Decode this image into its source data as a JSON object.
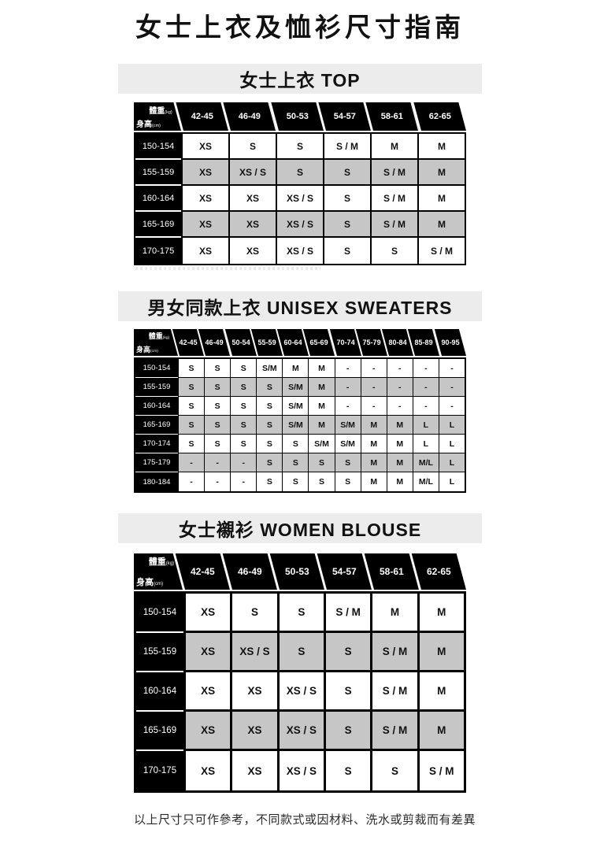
{
  "page": {
    "title": "女士上衣及恤衫尺寸指南",
    "footer": "以上尺寸只可作參考，不同款式或因材料、洗水或剪裁而有差異"
  },
  "corner": {
    "weight_label": "體重",
    "weight_unit": "(kg)",
    "height_label": "身高",
    "height_unit": "(cm)"
  },
  "colors": {
    "header_black": "#000000",
    "alt_row_gray": "#c6c6c6",
    "section_bar_bg": "#ececec"
  },
  "tables": [
    {
      "id": "women-top",
      "section_title": "女士上衣 TOP",
      "columns": [
        "42-45",
        "46-49",
        "50-53",
        "54-57",
        "58-61",
        "62-65"
      ],
      "rows": [
        {
          "label": "150-154",
          "cells": [
            "XS",
            "S",
            "S",
            "S / M",
            "M",
            "M"
          ]
        },
        {
          "label": "155-159",
          "cells": [
            "XS",
            "XS / S",
            "S",
            "S",
            "S / M",
            "M"
          ]
        },
        {
          "label": "160-164",
          "cells": [
            "XS",
            "XS",
            "XS / S",
            "S",
            "S / M",
            "M"
          ]
        },
        {
          "label": "165-169",
          "cells": [
            "XS",
            "XS",
            "XS / S",
            "S",
            "S / M",
            "M"
          ]
        },
        {
          "label": "170-175",
          "cells": [
            "XS",
            "XS",
            "XS / S",
            "S",
            "S",
            "S / M"
          ]
        }
      ]
    },
    {
      "id": "unisex-sweaters",
      "section_title": "男女同款上衣 UNISEX SWEATERS",
      "columns": [
        "42-45",
        "46-49",
        "50-54",
        "55-59",
        "60-64",
        "65-69",
        "70-74",
        "75-79",
        "80-84",
        "85-89",
        "90-95"
      ],
      "rows": [
        {
          "label": "150-154",
          "cells": [
            "S",
            "S",
            "S",
            "S/M",
            "M",
            "M",
            "-",
            "-",
            "-",
            "-",
            "-"
          ]
        },
        {
          "label": "155-159",
          "cells": [
            "S",
            "S",
            "S",
            "S",
            "S/M",
            "M",
            "-",
            "-",
            "-",
            "-",
            "-"
          ]
        },
        {
          "label": "160-164",
          "cells": [
            "S",
            "S",
            "S",
            "S",
            "S/M",
            "M",
            "-",
            "-",
            "-",
            "-",
            "-"
          ]
        },
        {
          "label": "165-169",
          "cells": [
            "S",
            "S",
            "S",
            "S",
            "S/M",
            "M",
            "S/M",
            "M",
            "M",
            "L",
            "L"
          ]
        },
        {
          "label": "170-174",
          "cells": [
            "S",
            "S",
            "S",
            "S",
            "S",
            "S/M",
            "S/M",
            "M",
            "M",
            "L",
            "L"
          ]
        },
        {
          "label": "175-179",
          "cells": [
            "-",
            "-",
            "-",
            "S",
            "S",
            "S",
            "S",
            "M",
            "M",
            "M/L",
            "L"
          ]
        },
        {
          "label": "180-184",
          "cells": [
            "-",
            "-",
            "-",
            "S",
            "S",
            "S",
            "S",
            "M",
            "M",
            "M/L",
            "L"
          ]
        }
      ]
    },
    {
      "id": "women-blouse",
      "section_title": "女士襯衫 WOMEN BLOUSE",
      "columns": [
        "42-45",
        "46-49",
        "50-53",
        "54-57",
        "58-61",
        "62-65"
      ],
      "rows": [
        {
          "label": "150-154",
          "cells": [
            "XS",
            "S",
            "S",
            "S / M",
            "M",
            "M"
          ]
        },
        {
          "label": "155-159",
          "cells": [
            "XS",
            "XS / S",
            "S",
            "S",
            "S / M",
            "M"
          ]
        },
        {
          "label": "160-164",
          "cells": [
            "XS",
            "XS",
            "XS / S",
            "S",
            "S / M",
            "M"
          ]
        },
        {
          "label": "165-169",
          "cells": [
            "XS",
            "XS",
            "XS / S",
            "S",
            "S / M",
            "M"
          ]
        },
        {
          "label": "170-175",
          "cells": [
            "XS",
            "XS",
            "XS / S",
            "S",
            "S",
            "S / M"
          ]
        }
      ]
    }
  ]
}
